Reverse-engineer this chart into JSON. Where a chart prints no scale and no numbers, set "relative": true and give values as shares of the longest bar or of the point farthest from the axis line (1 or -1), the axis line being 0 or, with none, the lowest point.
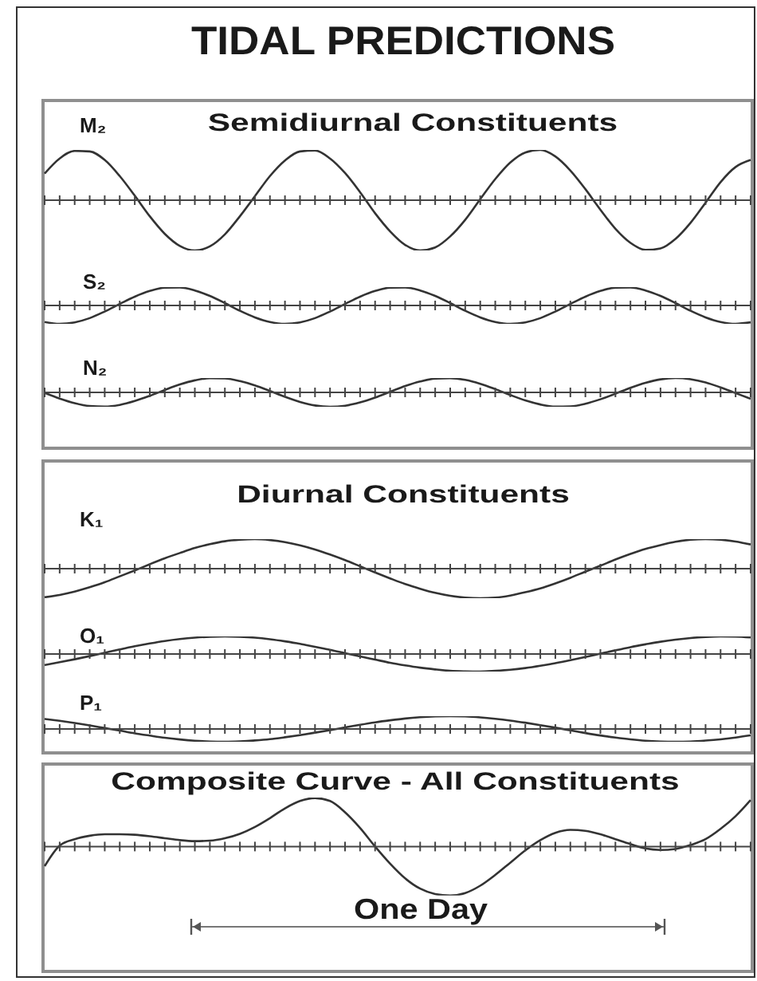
{
  "chart_data": [
    {
      "type": "line",
      "title": "TIDAL PREDICTIONS",
      "subtitle": "Semidiurnal Constituents",
      "relative": true,
      "categories": [
        null,
        null,
        null,
        null,
        null,
        null,
        null,
        null,
        null,
        null,
        null,
        null,
        null,
        null,
        null,
        null,
        null,
        null,
        null,
        null,
        null,
        null,
        null,
        null,
        null,
        null,
        null,
        null,
        null,
        null,
        null,
        null,
        null,
        null,
        null,
        null,
        null,
        null,
        null,
        null,
        null,
        null,
        null,
        null,
        null,
        null,
        null,
        null
      ],
      "series": [
        {
          "name": "M₂",
          "color": "#333333",
          "values": [
            0.53,
            0.83,
            0.98,
            0.97,
            0.8,
            0.48,
            0.09,
            -0.32,
            -0.67,
            -0.91,
            -1.0,
            -0.92,
            -0.68,
            -0.32,
            0.08,
            0.48,
            0.79,
            0.97,
            0.99,
            0.83,
            0.54,
            0.16,
            -0.26,
            -0.62,
            -0.89,
            -1.0,
            -0.94,
            -0.72,
            -0.39,
            0.02,
            0.42,
            0.75,
            0.95,
            1.0,
            0.87,
            0.59,
            0.22,
            -0.19,
            -0.57,
            -0.85,
            -0.99,
            -0.96,
            -0.77,
            -0.45,
            -0.05,
            0.36,
            0.66,
            0.8
          ]
        }
      ]
    },
    {
      "type": "line",
      "relative": true,
      "categories": [
        null,
        null,
        null,
        null,
        null,
        null,
        null,
        null,
        null,
        null,
        null,
        null,
        null,
        null,
        null,
        null,
        null,
        null,
        null,
        null,
        null,
        null,
        null,
        null,
        null,
        null,
        null,
        null,
        null,
        null,
        null,
        null,
        null,
        null,
        null,
        null,
        null,
        null,
        null,
        null,
        null,
        null,
        null,
        null,
        null,
        null,
        null,
        null
      ],
      "series": [
        {
          "name": "S₂",
          "color": "#333333",
          "values": [
            -0.9,
            -1.0,
            -0.92,
            -0.69,
            -0.33,
            0.08,
            0.48,
            0.79,
            0.97,
            0.98,
            0.82,
            0.52,
            0.13,
            -0.29,
            -0.65,
            -0.9,
            -1.0,
            -0.92,
            -0.69,
            -0.33,
            0.08,
            0.48,
            0.79,
            0.97,
            0.98,
            0.82,
            0.52,
            0.13,
            -0.29,
            -0.65,
            -0.9,
            -1.0,
            -0.92,
            -0.69,
            -0.33,
            0.08,
            0.48,
            0.79,
            0.97,
            0.98,
            0.82,
            0.52,
            0.13,
            -0.29,
            -0.65,
            -0.9,
            -1.0,
            -0.92
          ]
        }
      ]
    },
    {
      "type": "line",
      "relative": true,
      "categories": [
        null,
        null,
        null,
        null,
        null,
        null,
        null,
        null,
        null,
        null,
        null,
        null,
        null,
        null,
        null,
        null,
        null,
        null,
        null,
        null,
        null,
        null,
        null,
        null,
        null,
        null,
        null,
        null,
        null,
        null,
        null,
        null,
        null,
        null,
        null,
        null,
        null,
        null,
        null,
        null,
        null,
        null,
        null,
        null,
        null,
        null,
        null,
        null
      ],
      "series": [
        {
          "name": "N₂",
          "color": "#333333",
          "values": [
            -0.03,
            -0.43,
            -0.75,
            -0.95,
            -0.99,
            -0.87,
            -0.6,
            -0.24,
            0.17,
            0.55,
            0.84,
            0.99,
            0.97,
            0.79,
            0.49,
            0.1,
            -0.31,
            -0.66,
            -0.91,
            -1.0,
            -0.93,
            -0.7,
            -0.36,
            0.04,
            0.44,
            0.76,
            0.96,
            0.99,
            0.87,
            0.6,
            0.23,
            -0.18,
            -0.56,
            -0.84,
            -0.99,
            -0.97,
            -0.79,
            -0.48,
            -0.09,
            0.32,
            0.67,
            0.91,
            1.0,
            0.92,
            0.7,
            0.35,
            -0.05,
            -0.44
          ]
        }
      ]
    },
    {
      "type": "line",
      "title": "Diurnal Constituents",
      "relative": true,
      "categories": [
        null,
        null,
        null,
        null,
        null,
        null,
        null,
        null,
        null,
        null,
        null,
        null,
        null,
        null,
        null,
        null,
        null,
        null,
        null,
        null,
        null,
        null,
        null,
        null,
        null,
        null,
        null,
        null,
        null,
        null,
        null,
        null,
        null,
        null,
        null,
        null,
        null,
        null,
        null,
        null,
        null,
        null,
        null,
        null,
        null,
        null,
        null,
        null
      ],
      "series": [
        {
          "name": "K₁",
          "color": "#333333",
          "values": [
            -0.97,
            -0.89,
            -0.78,
            -0.63,
            -0.46,
            -0.26,
            -0.06,
            0.15,
            0.35,
            0.53,
            0.7,
            0.83,
            0.93,
            0.98,
            1.0,
            0.97,
            0.9,
            0.79,
            0.65,
            0.48,
            0.29,
            0.08,
            -0.13,
            -0.33,
            -0.52,
            -0.68,
            -0.82,
            -0.92,
            -0.98,
            -1.0,
            -0.98,
            -0.91,
            -0.8,
            -0.67,
            -0.5,
            -0.31,
            -0.1,
            0.1,
            0.31,
            0.5,
            0.67,
            0.8,
            0.91,
            0.98,
            1.0,
            0.98,
            0.92,
            0.82
          ]
        }
      ]
    },
    {
      "type": "line",
      "relative": true,
      "categories": [
        null,
        null,
        null,
        null,
        null,
        null,
        null,
        null,
        null,
        null,
        null,
        null,
        null,
        null,
        null,
        null,
        null,
        null,
        null,
        null,
        null,
        null,
        null,
        null,
        null,
        null,
        null,
        null,
        null,
        null,
        null,
        null,
        null,
        null,
        null,
        null,
        null,
        null,
        null,
        null,
        null,
        null,
        null,
        null,
        null,
        null,
        null,
        null
      ],
      "series": [
        {
          "name": "O₁",
          "color": "#333333",
          "values": [
            -0.63,
            -0.47,
            -0.3,
            -0.12,
            0.07,
            0.26,
            0.44,
            0.6,
            0.74,
            0.85,
            0.93,
            0.98,
            1.0,
            0.98,
            0.93,
            0.84,
            0.72,
            0.58,
            0.41,
            0.24,
            0.05,
            -0.14,
            -0.32,
            -0.5,
            -0.65,
            -0.78,
            -0.88,
            -0.96,
            -0.99,
            -1.0,
            -0.96,
            -0.9,
            -0.8,
            -0.67,
            -0.52,
            -0.35,
            -0.17,
            0.02,
            0.21,
            0.39,
            0.55,
            0.7,
            0.82,
            0.91,
            0.97,
            1.0,
            0.99,
            0.94
          ]
        }
      ]
    },
    {
      "type": "line",
      "relative": true,
      "categories": [
        null,
        null,
        null,
        null,
        null,
        null,
        null,
        null,
        null,
        null,
        null,
        null,
        null,
        null,
        null,
        null,
        null,
        null,
        null,
        null,
        null,
        null,
        null,
        null,
        null,
        null,
        null,
        null,
        null,
        null,
        null,
        null,
        null,
        null,
        null,
        null,
        null,
        null,
        null,
        null,
        null,
        null,
        null,
        null,
        null,
        null,
        null,
        null
      ],
      "series": [
        {
          "name": "P₁",
          "color": "#333333",
          "values": [
            0.79,
            0.64,
            0.47,
            0.28,
            0.07,
            -0.13,
            -0.34,
            -0.52,
            -0.69,
            -0.82,
            -0.92,
            -0.98,
            -1.0,
            -0.97,
            -0.9,
            -0.8,
            -0.65,
            -0.48,
            -0.29,
            -0.09,
            0.12,
            0.33,
            0.52,
            0.68,
            0.82,
            0.92,
            0.98,
            1.0,
            0.98,
            0.91,
            0.8,
            0.66,
            0.49,
            0.3,
            0.1,
            -0.11,
            -0.32,
            -0.51,
            -0.67,
            -0.81,
            -0.92,
            -0.98,
            -1.0,
            -0.98,
            -0.91,
            -0.81,
            -0.67,
            -0.5
          ]
        }
      ]
    },
    {
      "type": "line",
      "title": "Composite Curve - All Constituents",
      "relative": true,
      "annotations": [
        "One Day"
      ],
      "categories": [
        null,
        null,
        null,
        null,
        null,
        null,
        null,
        null,
        null,
        null,
        null,
        null,
        null,
        null,
        null,
        null,
        null,
        null,
        null,
        null,
        null,
        null,
        null,
        null,
        null,
        null,
        null,
        null,
        null,
        null,
        null,
        null,
        null,
        null,
        null,
        null,
        null,
        null,
        null,
        null,
        null,
        null,
        null,
        null,
        null,
        null,
        null,
        null
      ],
      "series": [
        {
          "color": "#333333",
          "values": [
            -0.4,
            0.02,
            0.15,
            0.22,
            0.25,
            0.25,
            0.24,
            0.21,
            0.17,
            0.13,
            0.11,
            0.12,
            0.17,
            0.26,
            0.4,
            0.58,
            0.78,
            0.93,
            0.99,
            0.93,
            0.7,
            0.38,
            0.0,
            -0.35,
            -0.65,
            -0.86,
            -0.97,
            -1.0,
            -0.95,
            -0.8,
            -0.58,
            -0.33,
            -0.08,
            0.13,
            0.28,
            0.34,
            0.32,
            0.25,
            0.15,
            0.05,
            -0.04,
            -0.07,
            -0.05,
            0.03,
            0.15,
            0.36,
            0.62,
            0.95
          ]
        }
      ]
    }
  ]
}
